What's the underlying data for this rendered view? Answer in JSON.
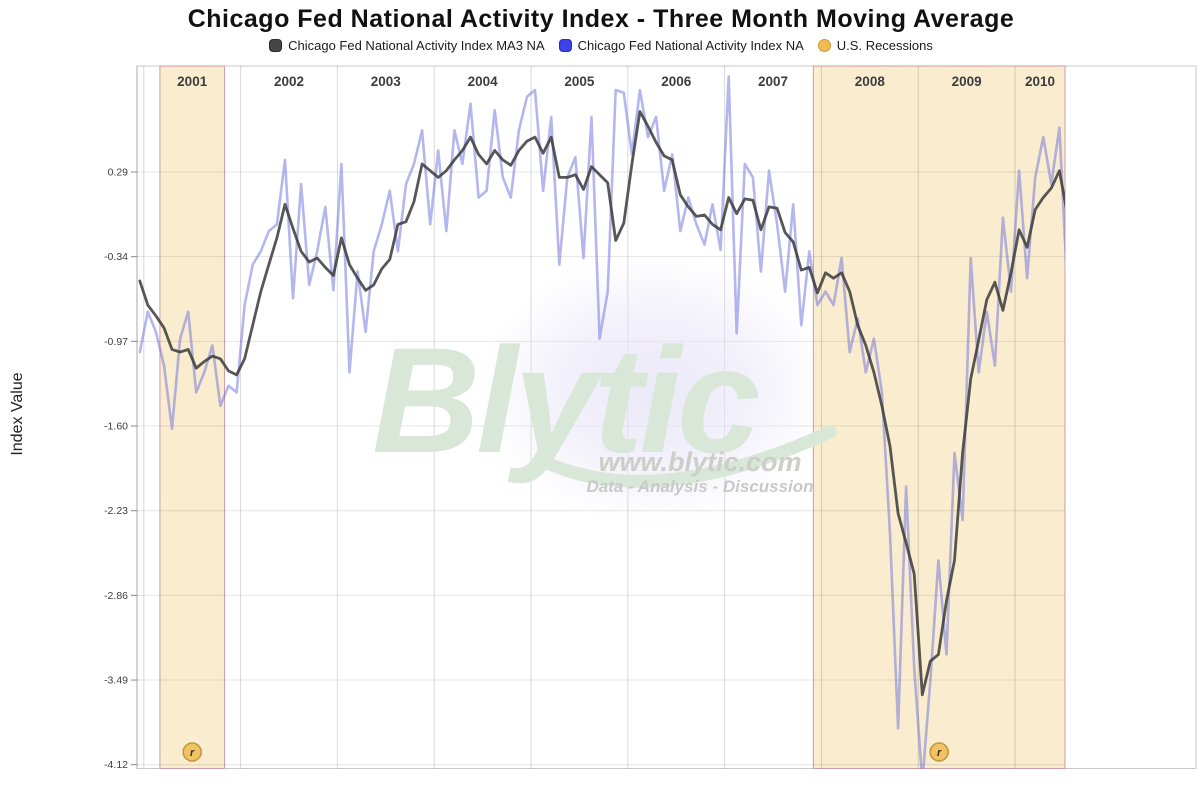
{
  "title": "Chicago Fed National Activity Index - Three Month Moving Average",
  "y_axis": {
    "title": "Index Value",
    "ticks": [
      "0.29",
      "-0.34",
      "-0.97",
      "-1.60",
      "-2.23",
      "-2.86",
      "-3.49",
      "-4.12"
    ],
    "tick_values": [
      0.29,
      -0.34,
      -0.97,
      -1.6,
      -2.23,
      -2.86,
      -3.49,
      -4.12
    ]
  },
  "x_axis": {
    "years": [
      "2001",
      "2002",
      "2003",
      "2004",
      "2005",
      "2006",
      "2007",
      "2008",
      "2009",
      "2010"
    ]
  },
  "legend": [
    {
      "label": "Chicago Fed National Activity Index MA3 NA",
      "swatch_color": "#454545",
      "swatch_border": "#2a2a2a",
      "shape": "rounded-square"
    },
    {
      "label": "Chicago Fed National Activity Index NA",
      "swatch_color": "#3c41e8",
      "swatch_border": "#2d2dbb",
      "shape": "rounded-square"
    },
    {
      "label": "U.S. Recessions",
      "swatch_color": "#f4b952",
      "swatch_border": "#cf9a30",
      "shape": "circle"
    }
  ],
  "watermark": {
    "brand": "Blytic",
    "url": "www.blytic.com",
    "tagline": "Data - Analysis - Discussion",
    "brand_color": "#d9e7d9",
    "text_color": "#cbcfc7",
    "tagline_color": "#c9c9c9"
  },
  "recession_badge_glyph": "r",
  "colors": {
    "ma3_line": "#3b3b3b",
    "na_line": "#6970dc",
    "recession_fill": "#faecce",
    "recession_border": "#cf9ca4",
    "grid_h": "rgba(0,0,0,0.10)",
    "grid_v": "rgba(0,0,0,0.15)",
    "axis_spine": "#aaaaaa",
    "container_border": "#c8c8c8",
    "badge_fill": "#f2c366",
    "badge_border": "#c09a3e",
    "tick_text": "#3d3d3d",
    "year_text": "#3d3d3d"
  },
  "chart_data": {
    "type": "line",
    "frequency": "monthly",
    "start_month": "2000-12",
    "end_month": "2010-07",
    "title": "Chicago Fed National Activity Index - Three Month Moving Average",
    "ylabel": "Index Value",
    "ylim": [
      -4.15,
      1.08
    ],
    "ytick_interval": 0.63,
    "grid": true,
    "legend_position": "top",
    "series": [
      {
        "name": "Chicago Fed National Activity Index MA3 NA",
        "color": "#3b3b3b",
        "values": [
          -0.52,
          -0.7,
          -0.78,
          -0.87,
          -1.03,
          -1.05,
          -1.03,
          -1.17,
          -1.12,
          -1.08,
          -1.1,
          -1.19,
          -1.22,
          -1.1,
          -0.85,
          -0.6,
          -0.4,
          -0.2,
          0.05,
          -0.13,
          -0.3,
          -0.38,
          -0.35,
          -0.42,
          -0.48,
          -0.2,
          -0.4,
          -0.5,
          -0.59,
          -0.55,
          -0.43,
          -0.36,
          -0.1,
          -0.08,
          0.07,
          0.35,
          0.3,
          0.25,
          0.3,
          0.38,
          0.45,
          0.55,
          0.42,
          0.35,
          0.45,
          0.38,
          0.34,
          0.45,
          0.52,
          0.55,
          0.43,
          0.55,
          0.25,
          0.25,
          0.27,
          0.16,
          0.33,
          0.27,
          0.21,
          -0.22,
          -0.09,
          0.35,
          0.74,
          0.63,
          0.51,
          0.41,
          0.38,
          0.12,
          0.03,
          -0.04,
          -0.03,
          -0.1,
          -0.14,
          0.1,
          -0.02,
          0.09,
          0.08,
          -0.14,
          0.03,
          0.02,
          -0.16,
          -0.23,
          -0.44,
          -0.42,
          -0.61,
          -0.46,
          -0.5,
          -0.46,
          -0.6,
          -0.85,
          -1.0,
          -1.2,
          -1.45,
          -1.75,
          -2.25,
          -2.47,
          -2.7,
          -3.6,
          -3.35,
          -3.3,
          -2.9,
          -2.6,
          -1.8,
          -1.25,
          -0.96,
          -0.66,
          -0.53,
          -0.74,
          -0.46,
          -0.14,
          -0.27,
          0.01,
          0.1,
          0.17,
          0.3,
          -0.03
        ]
      },
      {
        "name": "Chicago Fed National Activity Index NA",
        "color": "#6970dc",
        "values": [
          -1.05,
          -0.75,
          -0.9,
          -1.15,
          -1.62,
          -0.95,
          -0.75,
          -1.35,
          -1.2,
          -1.0,
          -1.45,
          -1.3,
          -1.35,
          -0.7,
          -0.4,
          -0.3,
          -0.15,
          -0.1,
          0.38,
          -0.65,
          0.2,
          -0.55,
          -0.3,
          0.03,
          -0.59,
          0.35,
          -1.2,
          -0.45,
          -0.9,
          -0.3,
          -0.1,
          0.15,
          -0.3,
          0.2,
          0.35,
          0.6,
          -0.1,
          0.45,
          -0.15,
          0.6,
          0.35,
          0.8,
          0.1,
          0.15,
          0.75,
          0.25,
          0.1,
          0.6,
          0.85,
          0.9,
          0.15,
          0.7,
          -0.4,
          0.25,
          0.4,
          -0.35,
          0.7,
          -0.95,
          -0.6,
          0.9,
          0.88,
          0.42,
          0.9,
          0.55,
          0.7,
          0.15,
          0.42,
          -0.15,
          0.1,
          -0.1,
          -0.25,
          0.05,
          -0.29,
          1.0,
          -0.91,
          0.35,
          0.25,
          -0.45,
          0.3,
          -0.1,
          -0.6,
          0.05,
          -0.85,
          -0.3,
          -0.7,
          -0.6,
          -0.7,
          -0.35,
          -1.05,
          -0.8,
          -1.2,
          -0.95,
          -1.35,
          -2.4,
          -3.85,
          -2.05,
          -3.4,
          -4.25,
          -3.5,
          -2.6,
          -3.3,
          -1.8,
          -2.3,
          -0.35,
          -1.2,
          -0.75,
          -1.15,
          -0.05,
          -0.6,
          0.3,
          -0.5,
          0.25,
          0.55,
          0.2,
          0.62,
          -0.6
        ]
      }
    ],
    "recessions": [
      {
        "start": "2001-03",
        "end": "2001-10"
      },
      {
        "start": "2007-12",
        "end": "2010-07"
      }
    ]
  }
}
